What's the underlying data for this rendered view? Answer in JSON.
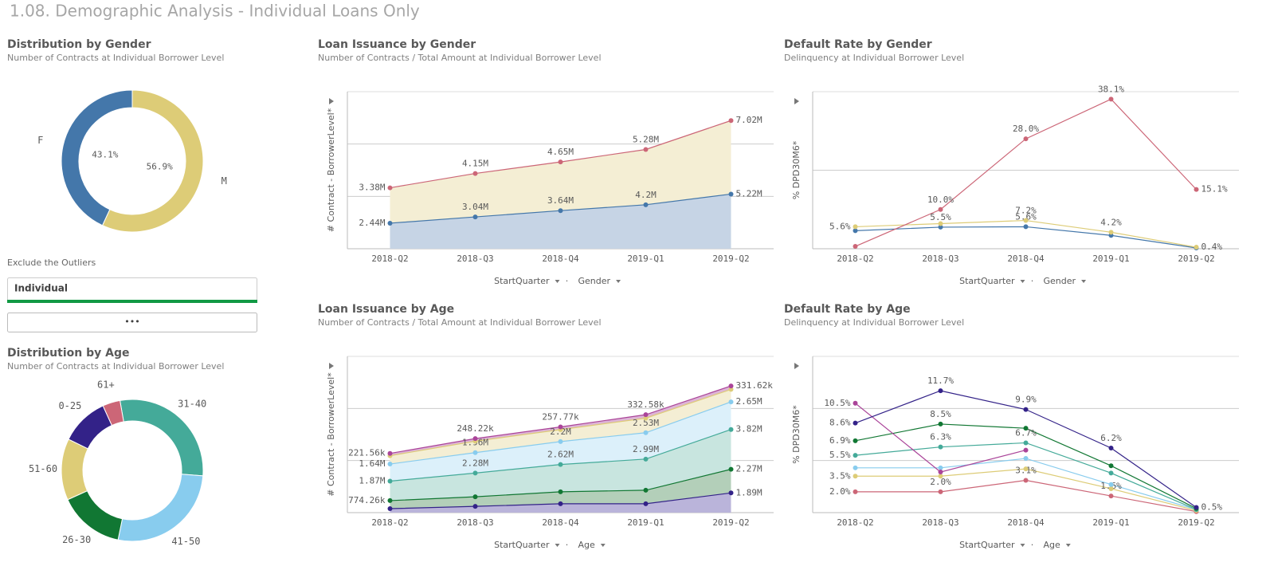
{
  "page_title": "1.08. Demographic Analysis - Individual Loans Only",
  "filter": {
    "label": "Exclude the Outliers",
    "selected": "Individual",
    "more": "•••"
  },
  "chart_data": [
    {
      "type": "pie",
      "title": "Distribution by Gender",
      "subtitle": "Number of Contracts at Individual Borrower Level",
      "categories": [
        "F",
        "M"
      ],
      "values": [
        43.1,
        56.9
      ],
      "value_labels": [
        "43.1%",
        "56.9%"
      ],
      "colors": [
        "#4477aa",
        "#ddcc77"
      ]
    },
    {
      "type": "pie",
      "title": "Distribution by Age",
      "subtitle": "Number of Contracts at Individual Borrower Level",
      "categories": [
        "31-40",
        "41-50",
        "26-30",
        "51-60",
        "0-25",
        "61+"
      ],
      "values": [
        29,
        27,
        15,
        14,
        11,
        4
      ],
      "colors": [
        "#44aa99",
        "#88ccee",
        "#117733",
        "#ddcc77",
        "#332288",
        "#cc6677"
      ]
    },
    {
      "type": "area",
      "stacked": true,
      "title": "Loan Issuance by Gender",
      "subtitle": "Number of Contracts / Total Amount at Individual Borrower Level",
      "ylabel": "# Contract - BorrowerLevel*",
      "x_dimensions": [
        "StartQuarter",
        "Gender"
      ],
      "categories": [
        "2018-Q2",
        "2018-Q3",
        "2018-Q4",
        "2019-Q1",
        "2019-Q2"
      ],
      "ylim": [
        0,
        15000000
      ],
      "series": [
        {
          "color": "#4477aa",
          "fill": "#c6d4e5",
          "values": [
            2440000,
            3040000,
            3640000,
            4200000,
            5220000
          ],
          "value_labels": [
            "2.44M",
            "3.04M",
            "3.64M",
            "4.2M",
            "5.22M"
          ]
        },
        {
          "color": "#cc6677",
          "fill": "#f4eed4",
          "values": [
            3380000,
            4150000,
            4650000,
            5280000,
            7020000
          ],
          "value_labels": [
            "3.38M",
            "4.15M",
            "4.65M",
            "5.28M",
            "7.02M"
          ]
        }
      ]
    },
    {
      "type": "line",
      "title": "Default Rate by Gender",
      "subtitle": "Delinquency at Individual Borrower Level",
      "ylabel": "% DPD30M6*",
      "x_dimensions": [
        "StartQuarter",
        "Gender"
      ],
      "categories": [
        "2018-Q2",
        "2018-Q3",
        "2018-Q4",
        "2019-Q1",
        "2019-Q2"
      ],
      "ylim": [
        0,
        40
      ],
      "series": [
        {
          "color": "#4477aa",
          "values": [
            4.6,
            5.5,
            5.6,
            3.4,
            0.2
          ],
          "value_labels": [
            null,
            "5.5%",
            "5.6%",
            null,
            null
          ]
        },
        {
          "color": "#ddcc77",
          "values": [
            5.6,
            6.4,
            7.2,
            4.2,
            0.4
          ],
          "value_labels": [
            "5.6%",
            null,
            "7.2%",
            "4.2%",
            "0.4%"
          ]
        },
        {
          "color": "#cc6677",
          "values": [
            0.6,
            10.0,
            28.0,
            38.1,
            15.1
          ],
          "value_labels": [
            null,
            "10.0%",
            "28.0%",
            "38.1%",
            "15.1%"
          ]
        }
      ]
    },
    {
      "type": "area",
      "stacked": true,
      "title": "Loan Issuance by Age",
      "subtitle": "Number of Contracts / Total Amount at Individual Borrower Level",
      "ylabel": "# Contract - BorrowerLevel*",
      "x_dimensions": [
        "StartQuarter",
        "Age"
      ],
      "categories": [
        "2018-Q2",
        "2018-Q3",
        "2018-Q4",
        "2019-Q1",
        "2019-Q2"
      ],
      "ylim": [
        0,
        15000000
      ],
      "series": [
        {
          "color": "#332288",
          "fill": "#bab4da",
          "values": [
            380000,
            600000,
            850000,
            850000,
            1890000
          ],
          "value_labels": [
            null,
            null,
            null,
            null,
            "1.89M"
          ]
        },
        {
          "color": "#117733",
          "fill": "#b3cfb9",
          "values": [
            774260,
            920000,
            1150000,
            1300000,
            2270000
          ],
          "value_labels": [
            "774.26k",
            null,
            null,
            null,
            "2.27M"
          ]
        },
        {
          "color": "#44aa99",
          "fill": "#c8e5df",
          "values": [
            1870000,
            2280000,
            2620000,
            2990000,
            3820000
          ],
          "value_labels": [
            "1.87M",
            "2.28M",
            "2.62M",
            "2.99M",
            "3.82M"
          ]
        },
        {
          "color": "#88ccee",
          "fill": "#dcf0fa",
          "values": [
            1640000,
            1960000,
            2200000,
            2530000,
            2650000
          ],
          "value_labels": [
            "1.64M",
            "1.96M",
            "2.2M",
            "2.53M",
            "2.65M"
          ]
        },
        {
          "color": "#ddcc77",
          "fill": "#f4eed4",
          "values": [
            800000,
            1100000,
            1150000,
            1400000,
            1200000
          ],
          "value_labels": [
            null,
            null,
            null,
            null,
            null
          ]
        },
        {
          "color": "#aa4499",
          "fill": "#ddb4d6",
          "values": [
            221560,
            248220,
            257770,
            332580,
            331620
          ],
          "value_labels": [
            "221.56k",
            "248.22k",
            "257.77k",
            "332.58k",
            "331.62k"
          ]
        }
      ]
    },
    {
      "type": "line",
      "title": "Default Rate by Age",
      "subtitle": "Delinquency at Individual Borrower Level",
      "ylabel": "% DPD30M6*",
      "x_dimensions": [
        "StartQuarter",
        "Age"
      ],
      "categories": [
        "2018-Q2",
        "2018-Q3",
        "2018-Q4",
        "2019-Q1",
        "2019-Q2"
      ],
      "ylim": [
        0,
        15
      ],
      "series": [
        {
          "color": "#cc6677",
          "values": [
            2.0,
            2.0,
            3.1,
            1.6,
            0.1
          ],
          "value_labels": [
            "2.0%",
            "2.0%",
            "3.1%",
            "1.6%",
            null
          ]
        },
        {
          "color": "#ddcc77",
          "values": [
            3.5,
            3.5,
            4.2,
            2.3,
            0.2
          ],
          "value_labels": [
            "3.5%",
            null,
            null,
            null,
            null
          ]
        },
        {
          "color": "#88ccee",
          "values": [
            4.3,
            4.3,
            5.2,
            2.7,
            0.3
          ],
          "value_labels": [
            null,
            null,
            null,
            null,
            null
          ]
        },
        {
          "color": "#44aa99",
          "values": [
            5.5,
            6.3,
            6.7,
            3.8,
            0.3
          ],
          "value_labels": [
            "5.5%",
            "6.3%",
            "6.7%",
            null,
            null
          ]
        },
        {
          "color": "#117733",
          "values": [
            6.9,
            8.5,
            8.1,
            4.5,
            0.4
          ],
          "value_labels": [
            "6.9%",
            "8.5%",
            null,
            null,
            null
          ]
        },
        {
          "color": "#aa4499",
          "values": [
            10.5,
            3.9,
            6.0,
            null,
            null
          ],
          "value_labels": [
            "10.5%",
            null,
            null,
            null,
            null
          ]
        },
        {
          "color": "#332288",
          "values": [
            8.6,
            11.7,
            9.9,
            6.2,
            0.5
          ],
          "value_labels": [
            "8.6%",
            "11.7%",
            "9.9%",
            "6.2%",
            "0.5%"
          ]
        }
      ]
    }
  ]
}
